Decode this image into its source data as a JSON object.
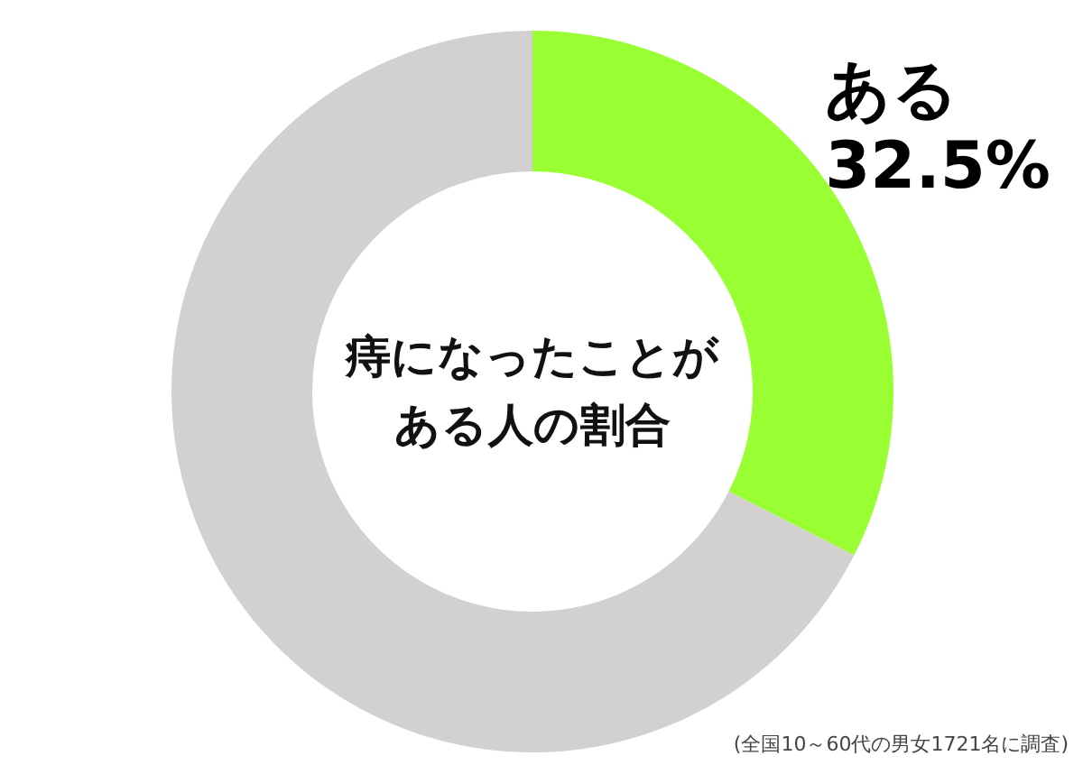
{
  "chart_data": {
    "type": "donut",
    "title": "痔になったことがある人の割合",
    "categories": [
      "ある",
      null
    ],
    "values": [
      32.5,
      67.5
    ],
    "colors": [
      "#99ff33",
      "#d3d0d0"
    ],
    "value_labels": [
      "32.5%",
      null
    ],
    "annotations": [
      "(全国10～60代の男女1721名に調査)"
    ]
  }
}
